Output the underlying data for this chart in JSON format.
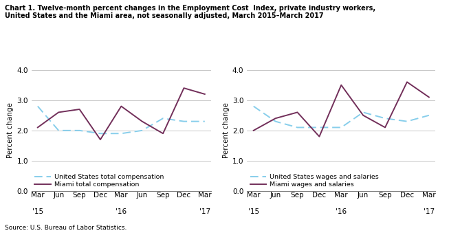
{
  "title_line1": "Chart 1. Twelve-month percent changes in the Employment Cost  Index, private industry workers,",
  "title_line2": "United States and the Miami area, not seasonally adjusted, March 2015–March 2017",
  "ylabel": "Percent change",
  "source": "Source: U.S. Bureau of Labor Statistics.",
  "x_labels": [
    "Mar",
    "Jun",
    "Sep",
    "Dec",
    "Mar",
    "Jun",
    "Sep",
    "Dec",
    "Mar"
  ],
  "x_year_labels": {
    "0": "'15",
    "4": "'16",
    "8": "'17"
  },
  "ylim": [
    0.0,
    4.0
  ],
  "yticks": [
    0.0,
    1.0,
    2.0,
    3.0,
    4.0
  ],
  "left_us": [
    2.8,
    2.0,
    2.0,
    1.9,
    1.9,
    2.0,
    2.4,
    2.3,
    2.3
  ],
  "left_miami": [
    2.1,
    2.6,
    2.7,
    1.7,
    2.8,
    2.3,
    1.9,
    3.4,
    3.2
  ],
  "right_us": [
    2.8,
    2.3,
    2.1,
    2.1,
    2.1,
    2.6,
    2.4,
    2.3,
    2.5
  ],
  "right_miami": [
    2.0,
    2.4,
    2.6,
    1.8,
    3.5,
    2.5,
    2.1,
    3.6,
    3.1
  ],
  "us_color": "#87CEEB",
  "miami_color": "#722F5A",
  "left_legend_us": "United States total compensation",
  "left_legend_miami": "Miami total compensation",
  "right_legend_us": "United States wages and salaries",
  "right_legend_miami": "Miami wages and salaries"
}
